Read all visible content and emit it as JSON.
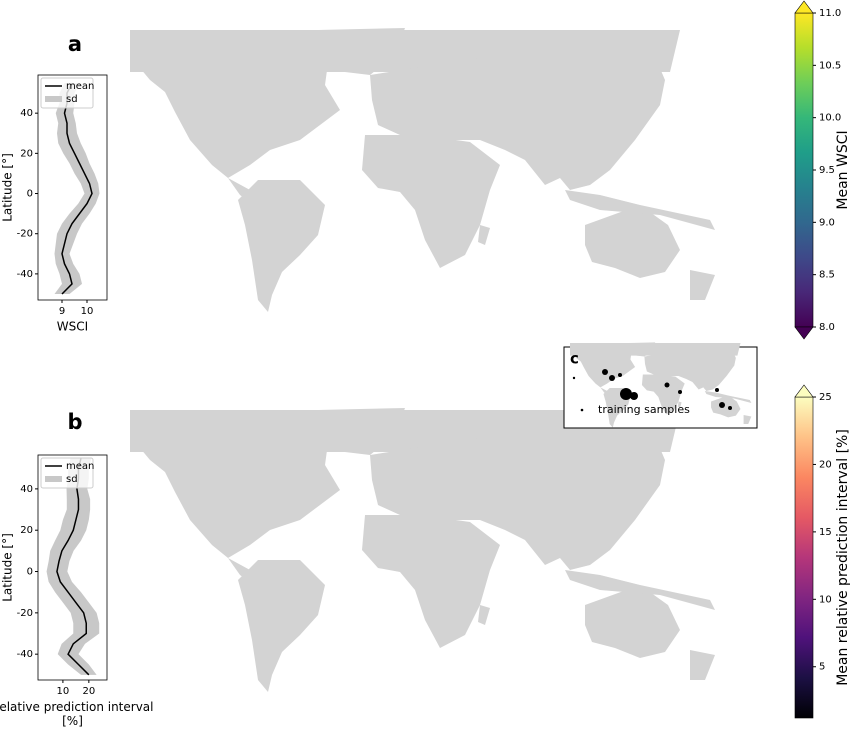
{
  "panels": [
    {
      "label": "a",
      "profile": {
        "type": "line",
        "ylabel": "Latitude [°]",
        "xlabel": "WSCI",
        "xlim": [
          8.04,
          10.8
        ],
        "xticks": [
          9,
          10
        ],
        "ylim": [
          -53,
          59
        ],
        "yticks": [
          -40,
          -20,
          0,
          20,
          40
        ],
        "latitudes": [
          -50,
          -45,
          -40,
          -35,
          -30,
          -25,
          -20,
          -15,
          -10,
          -5,
          0,
          5,
          10,
          15,
          20,
          25,
          30,
          35,
          40,
          45,
          50,
          55
        ],
        "series": [
          {
            "name": "mean",
            "color": "#000000",
            "values": [
              9.0,
              9.4,
              9.3,
              9.1,
              9.0,
              9.1,
              9.2,
              9.4,
              9.7,
              10.0,
              10.2,
              10.1,
              9.9,
              9.7,
              9.5,
              9.3,
              9.2,
              9.2,
              9.1,
              9.2,
              9.2,
              9.4
            ]
          },
          {
            "name": "sd",
            "color": "#c8c8c8",
            "values": [
              0.3,
              0.4,
              0.4,
              0.35,
              0.3,
              0.35,
              0.4,
              0.4,
              0.4,
              0.35,
              0.3,
              0.35,
              0.4,
              0.4,
              0.45,
              0.45,
              0.4,
              0.35,
              0.35,
              0.3,
              0.3,
              0.3
            ]
          }
        ]
      },
      "colorbar": {
        "label": "Mean WSCI",
        "colormap": "viridis",
        "extend": "both",
        "lim": [
          8.0,
          11.0
        ],
        "ticks": [
          {
            "value": 8,
            "label": "8.0"
          },
          8.5,
          {
            "value": 9,
            "label": "9.0"
          },
          9.5,
          {
            "value": 10,
            "label": "10.0"
          },
          10.5,
          {
            "value": 11,
            "label": "11.0"
          }
        ]
      }
    },
    {
      "label": "b",
      "profile": {
        "type": "line",
        "ylabel": "Latitude [°]",
        "xlabel": "Relative prediction interval [%]",
        "xlim": [
          0.4,
          27
        ],
        "xticks": [
          10,
          20
        ],
        "ylim": [
          -52.5,
          56.4
        ],
        "yticks": [
          -40,
          -20,
          0,
          20,
          40
        ],
        "latitudes": [
          -50,
          -45,
          -40,
          -35,
          -30,
          -25,
          -20,
          -15,
          -10,
          -5,
          0,
          5,
          10,
          15,
          20,
          25,
          30,
          35,
          40,
          45,
          50,
          55
        ],
        "series": [
          {
            "name": "mean",
            "color": "#000000",
            "values": [
              20,
              16,
              12,
              14,
              19,
              19,
              18,
              15,
              12,
              9,
              7.7,
              8.5,
              9.6,
              12,
              14,
              15,
              16,
              16,
              15.4,
              16,
              16,
              17
            ]
          },
          {
            "name": "sd",
            "color": "#c8c8c8",
            "values": [
              3,
              4,
              4,
              4.5,
              5,
              5,
              5,
              5,
              5,
              4.5,
              4,
              4,
              4.5,
              5,
              5,
              5,
              4.5,
              4.5,
              4,
              4,
              4,
              4
            ]
          }
        ]
      },
      "colorbar": {
        "label": "Mean relative prediction interval [%]",
        "colormap": "magma",
        "extend": "max",
        "lim": [
          1.2,
          25
        ],
        "ticks": [
          5,
          10,
          15,
          20,
          25
        ]
      }
    }
  ],
  "inset": {
    "label": "c",
    "legend": "training samples"
  }
}
